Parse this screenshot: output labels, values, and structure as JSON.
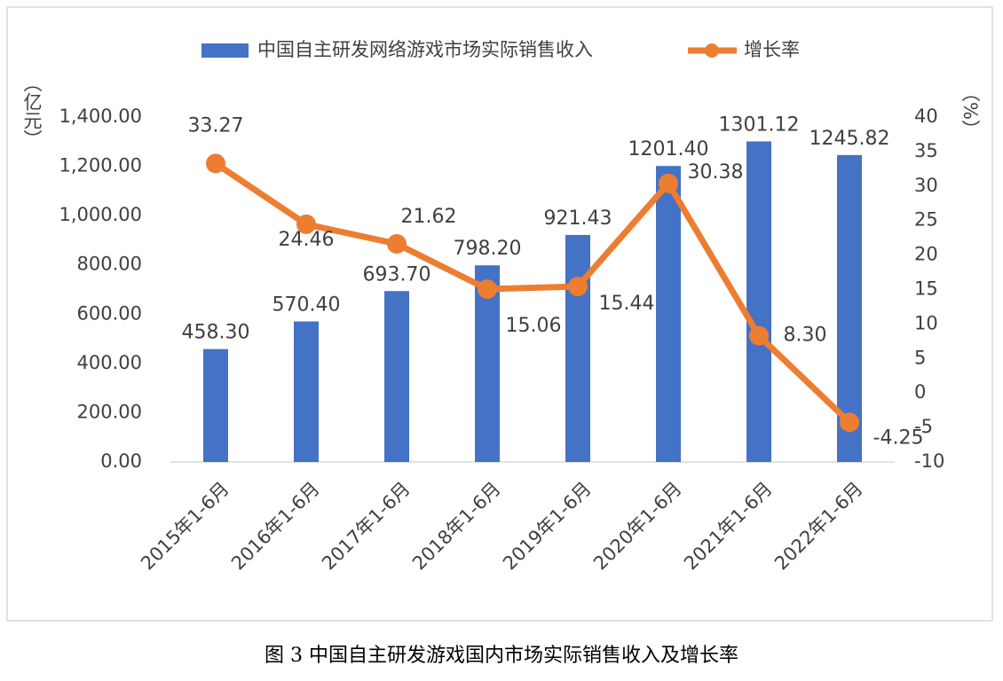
{
  "chart_data": {
    "type": "bar",
    "caption": "图 3 中国自主研发游戏国内市场实际销售收入及增长率",
    "y_label": "（亿元）",
    "y2_label": "（%）",
    "categories": [
      "2015年1-6月",
      "2016年1-6月",
      "2017年1-6月",
      "2018年1-6月",
      "2019年1-6月",
      "2020年1-6月",
      "2021年1-6月",
      "2022年1-6月"
    ],
    "series": [
      {
        "name": "中国自主研发网络游戏市场实际销售收入",
        "type": "bar",
        "color": "#4472c4",
        "values": [
          458.3,
          570.4,
          693.7,
          798.2,
          921.43,
          1201.4,
          1301.12,
          1245.82
        ],
        "value_labels": [
          "458.30",
          "570.40",
          "693.70",
          "798.20",
          "921.43",
          "1201.40",
          "1301.12",
          "1245.82"
        ]
      },
      {
        "name": "增长率",
        "type": "line",
        "axis": "y2",
        "color": "#ed7d31",
        "values": [
          33.27,
          24.46,
          21.62,
          15.06,
          15.44,
          30.38,
          8.3,
          -4.25
        ],
        "value_labels": [
          "33.27",
          "24.46",
          "21.62",
          "15.06",
          "15.44",
          "30.38",
          "8.30",
          "-4.25"
        ]
      }
    ],
    "ylim": [
      0,
      1400
    ],
    "yticks": [
      {
        "value": 0,
        "label": "0.00"
      },
      {
        "value": 200,
        "label": "200.00"
      },
      {
        "value": 400,
        "label": "400.00"
      },
      {
        "value": 600,
        "label": "600.00"
      },
      {
        "value": 800,
        "label": "800.00"
      },
      {
        "value": 1000,
        "label": "1,000.00"
      },
      {
        "value": 1200,
        "label": "1,200.00"
      },
      {
        "value": 1400,
        "label": "1,400.00"
      }
    ],
    "y2lim": [
      -10,
      40
    ],
    "y2ticks": [
      -10,
      -5,
      0,
      5,
      10,
      15,
      20,
      25,
      30,
      35,
      40
    ],
    "legend": "top"
  }
}
